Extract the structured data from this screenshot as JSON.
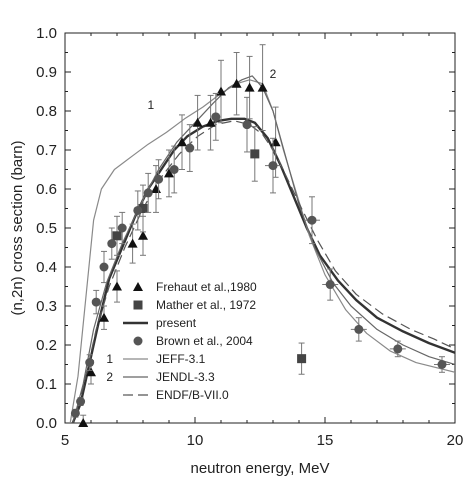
{
  "chart_data": {
    "type": "scatter",
    "xlabel": "neutron energy, MeV",
    "ylabel": "(n,2n) cross section (barn)",
    "xlim": [
      5,
      20
    ],
    "ylim": [
      0,
      1.0
    ],
    "x_ticks": [
      5,
      10,
      15,
      20
    ],
    "y_ticks": [
      0.0,
      0.1,
      0.2,
      0.3,
      0.4,
      0.5,
      0.6,
      0.7,
      0.8,
      0.9,
      1.0
    ],
    "y_tick_labels": [
      "0.0",
      "0.1",
      "0.2",
      "0.3",
      "0.4",
      "0.5",
      "0.6",
      "0.7",
      "0.8",
      "0.9",
      "1.0"
    ],
    "legend_placement": "lower-left",
    "series": [
      {
        "name": "Frehaut et al.,1980",
        "kind": "points",
        "marker": "triangle",
        "color": "#111111",
        "points": [
          {
            "x": 5.7,
            "y": 0.0,
            "err": 0.02
          },
          {
            "x": 6.0,
            "y": 0.13,
            "err": 0.03
          },
          {
            "x": 6.5,
            "y": 0.27,
            "err": 0.03
          },
          {
            "x": 7.0,
            "y": 0.35,
            "err": 0.04
          },
          {
            "x": 7.6,
            "y": 0.46,
            "err": 0.05
          },
          {
            "x": 8.0,
            "y": 0.48,
            "err": 0.05
          },
          {
            "x": 8.5,
            "y": 0.6,
            "err": 0.06
          },
          {
            "x": 9.0,
            "y": 0.64,
            "err": 0.06
          },
          {
            "x": 9.5,
            "y": 0.72,
            "err": 0.07
          },
          {
            "x": 10.1,
            "y": 0.77,
            "err": 0.07
          },
          {
            "x": 10.6,
            "y": 0.77,
            "err": 0.07
          },
          {
            "x": 11.0,
            "y": 0.85,
            "err": 0.08
          },
          {
            "x": 11.6,
            "y": 0.87,
            "err": 0.08
          },
          {
            "x": 12.1,
            "y": 0.86,
            "err": 0.08
          },
          {
            "x": 12.6,
            "y": 0.86,
            "err": 0.11
          },
          {
            "x": 13.1,
            "y": 0.72,
            "err": 0.09
          }
        ]
      },
      {
        "name": "Mather et al., 1972",
        "kind": "points",
        "marker": "square",
        "color": "#444444",
        "points": [
          {
            "x": 7.0,
            "y": 0.48,
            "err": 0.05
          },
          {
            "x": 8.0,
            "y": 0.55,
            "err": 0.06
          },
          {
            "x": 12.3,
            "y": 0.69,
            "err": 0.07
          },
          {
            "x": 14.1,
            "y": 0.165,
            "err": 0.04
          }
        ]
      },
      {
        "name": "present",
        "kind": "line",
        "color": "#333333",
        "width": 2.4,
        "dash": "",
        "points": [
          [
            5.3,
            0.0
          ],
          [
            5.6,
            0.05
          ],
          [
            5.9,
            0.14
          ],
          [
            6.3,
            0.26
          ],
          [
            6.7,
            0.37
          ],
          [
            7.2,
            0.45
          ],
          [
            7.7,
            0.53
          ],
          [
            8.2,
            0.6
          ],
          [
            8.7,
            0.65
          ],
          [
            9.2,
            0.7
          ],
          [
            9.7,
            0.735
          ],
          [
            10.3,
            0.76
          ],
          [
            10.9,
            0.775
          ],
          [
            11.4,
            0.78
          ],
          [
            11.9,
            0.78
          ],
          [
            12.3,
            0.77
          ],
          [
            12.8,
            0.73
          ],
          [
            13.3,
            0.66
          ],
          [
            13.8,
            0.58
          ],
          [
            14.3,
            0.5
          ],
          [
            14.8,
            0.43
          ],
          [
            15.5,
            0.365
          ],
          [
            16.2,
            0.315
          ],
          [
            17.0,
            0.27
          ],
          [
            18.0,
            0.235
          ],
          [
            19.0,
            0.205
          ],
          [
            20.0,
            0.18
          ]
        ]
      },
      {
        "name": "Brown et al., 2004",
        "kind": "points",
        "marker": "circle",
        "color": "#555555",
        "points": [
          {
            "x": 5.4,
            "y": 0.025,
            "err": 0.01
          },
          {
            "x": 5.6,
            "y": 0.055,
            "err": 0.01
          },
          {
            "x": 5.95,
            "y": 0.155,
            "err": 0.02
          },
          {
            "x": 6.2,
            "y": 0.31,
            "err": 0.03
          },
          {
            "x": 6.5,
            "y": 0.4,
            "err": 0.04
          },
          {
            "x": 6.8,
            "y": 0.46,
            "err": 0.04
          },
          {
            "x": 7.2,
            "y": 0.5,
            "err": 0.04
          },
          {
            "x": 7.8,
            "y": 0.545,
            "err": 0.05
          },
          {
            "x": 8.2,
            "y": 0.59,
            "err": 0.05
          },
          {
            "x": 8.6,
            "y": 0.625,
            "err": 0.05
          },
          {
            "x": 9.2,
            "y": 0.65,
            "err": 0.06
          },
          {
            "x": 9.8,
            "y": 0.705,
            "err": 0.06
          },
          {
            "x": 10.8,
            "y": 0.785,
            "err": 0.06
          },
          {
            "x": 12.0,
            "y": 0.765,
            "err": 0.07
          },
          {
            "x": 13.0,
            "y": 0.66,
            "err": 0.07
          },
          {
            "x": 14.5,
            "y": 0.52,
            "err": 0.06
          },
          {
            "x": 15.2,
            "y": 0.355,
            "err": 0.04
          },
          {
            "x": 16.3,
            "y": 0.24,
            "err": 0.03
          },
          {
            "x": 17.8,
            "y": 0.19,
            "err": 0.02
          },
          {
            "x": 19.5,
            "y": 0.15,
            "err": 0.02
          }
        ]
      },
      {
        "name": "JEFF-3.1",
        "kind": "line",
        "color": "#8a8a8a",
        "width": 1.2,
        "dash": "",
        "label": "1",
        "points": [
          [
            5.2,
            0.0
          ],
          [
            5.5,
            0.12
          ],
          [
            5.8,
            0.32
          ],
          [
            6.1,
            0.52
          ],
          [
            6.4,
            0.6
          ],
          [
            6.9,
            0.65
          ],
          [
            7.6,
            0.685
          ],
          [
            8.2,
            0.715
          ],
          [
            8.9,
            0.745
          ],
          [
            9.6,
            0.78
          ],
          [
            10.3,
            0.81
          ],
          [
            11.0,
            0.845
          ],
          [
            11.6,
            0.87
          ],
          [
            12.1,
            0.88
          ],
          [
            12.6,
            0.87
          ],
          [
            13.0,
            0.8
          ],
          [
            13.4,
            0.7
          ],
          [
            13.9,
            0.59
          ],
          [
            14.4,
            0.48
          ],
          [
            15.0,
            0.38
          ],
          [
            15.8,
            0.29
          ],
          [
            16.6,
            0.23
          ],
          [
            17.5,
            0.185
          ],
          [
            18.5,
            0.155
          ],
          [
            20.0,
            0.13
          ]
        ]
      },
      {
        "name": "JENDL-3.3",
        "kind": "line",
        "color": "#666666",
        "width": 1.2,
        "dash": "",
        "label": "2",
        "points": [
          [
            5.3,
            0.0
          ],
          [
            5.7,
            0.1
          ],
          [
            6.1,
            0.24
          ],
          [
            6.6,
            0.36
          ],
          [
            7.2,
            0.46
          ],
          [
            7.9,
            0.56
          ],
          [
            8.6,
            0.65
          ],
          [
            9.3,
            0.72
          ],
          [
            10.0,
            0.77
          ],
          [
            10.7,
            0.82
          ],
          [
            11.3,
            0.86
          ],
          [
            11.8,
            0.88
          ],
          [
            12.2,
            0.89
          ],
          [
            12.6,
            0.86
          ],
          [
            13.0,
            0.8
          ],
          [
            13.5,
            0.68
          ],
          [
            14.0,
            0.56
          ],
          [
            14.6,
            0.45
          ],
          [
            15.3,
            0.36
          ],
          [
            16.0,
            0.3
          ],
          [
            17.0,
            0.24
          ],
          [
            18.0,
            0.2
          ],
          [
            19.0,
            0.17
          ],
          [
            20.0,
            0.15
          ]
        ]
      },
      {
        "name": "ENDF/B-VII.0",
        "kind": "line",
        "color": "#555555",
        "width": 1.2,
        "dash": "10 5",
        "points": [
          [
            5.3,
            0.0
          ],
          [
            5.7,
            0.09
          ],
          [
            6.2,
            0.24
          ],
          [
            6.7,
            0.35
          ],
          [
            7.3,
            0.45
          ],
          [
            8.0,
            0.55
          ],
          [
            8.7,
            0.63
          ],
          [
            9.4,
            0.69
          ],
          [
            10.1,
            0.735
          ],
          [
            10.8,
            0.765
          ],
          [
            11.5,
            0.775
          ],
          [
            12.1,
            0.765
          ],
          [
            12.6,
            0.74
          ],
          [
            13.1,
            0.69
          ],
          [
            13.6,
            0.62
          ],
          [
            14.1,
            0.55
          ],
          [
            14.7,
            0.47
          ],
          [
            15.4,
            0.39
          ],
          [
            16.2,
            0.33
          ],
          [
            17.2,
            0.28
          ],
          [
            18.3,
            0.24
          ],
          [
            19.2,
            0.215
          ],
          [
            20.0,
            0.19
          ]
        ]
      }
    ],
    "annotations": [
      {
        "text": "1",
        "x": 8.3,
        "y": 0.805
      },
      {
        "text": "2",
        "x": 13.0,
        "y": 0.885
      }
    ]
  }
}
